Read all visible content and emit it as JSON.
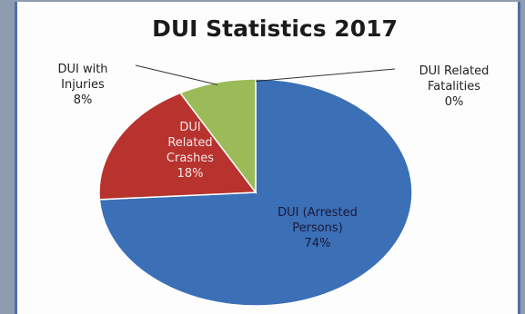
{
  "chart_data": {
    "type": "pie",
    "title": "DUI Statistics 2017",
    "slices": [
      {
        "label": "DUI (Arrested Persons)",
        "lines": [
          "DUI  (Arrested",
          "Persons)"
        ],
        "percent_label": "74%",
        "value": 74,
        "color": "#3b6fb6"
      },
      {
        "label": "DUI Related Crashes",
        "lines": [
          "DUI",
          "Related",
          "Crashes"
        ],
        "percent_label": "18%",
        "value": 18,
        "color": "#b8332e"
      },
      {
        "label": "DUI with Injuries",
        "lines": [
          "DUI with",
          "Injuries"
        ],
        "percent_label": "8%",
        "value": 8,
        "color": "#9bbb59"
      },
      {
        "label": "DUI Related Fatalities",
        "lines": [
          "DUI  Related",
          "Fatalities"
        ],
        "percent_label": "0%",
        "value": 0,
        "color": "#7f5ea8"
      }
    ],
    "start_angle_deg": 0,
    "direction": "clockwise",
    "legend": "none"
  }
}
